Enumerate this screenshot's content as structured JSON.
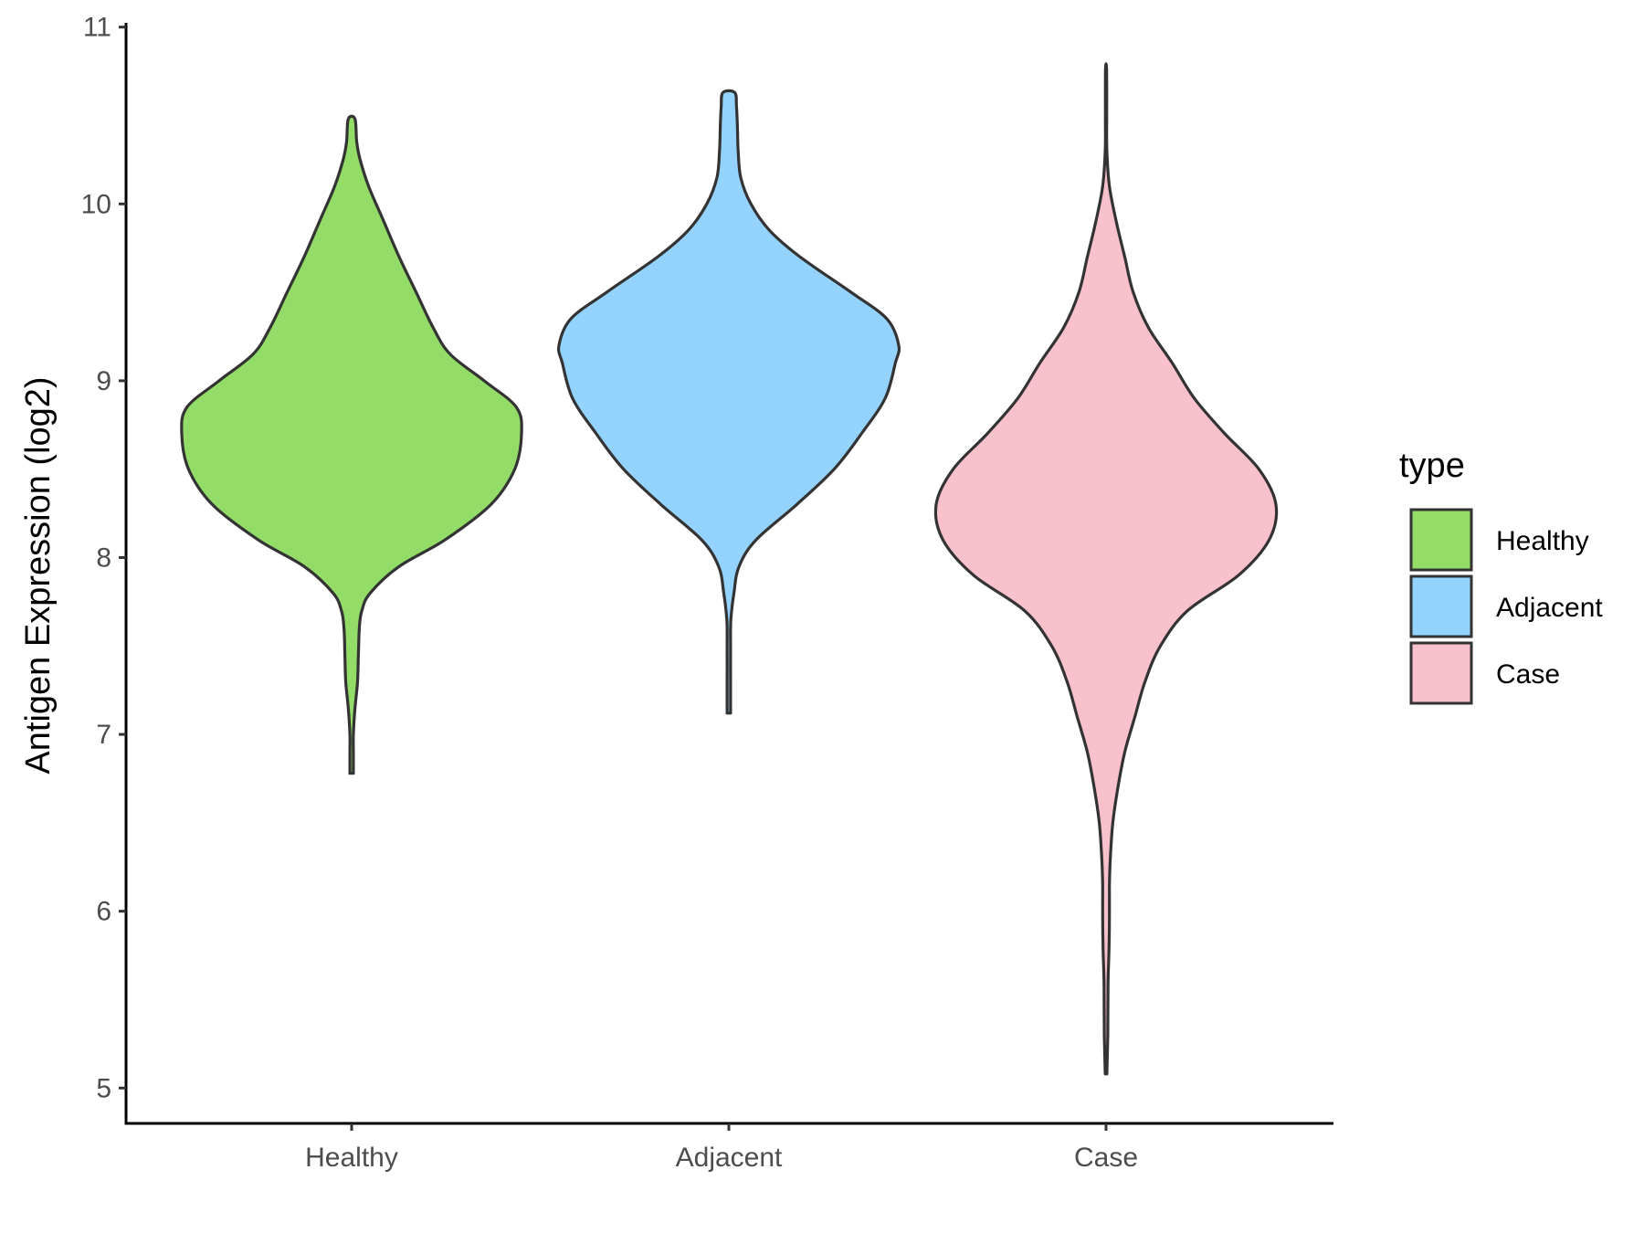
{
  "chart_data": {
    "type": "violin",
    "title": "",
    "xlabel": "",
    "ylabel": "Antigen Expression (log2)",
    "ylim": [
      4.8,
      11.05
    ],
    "yticks": [
      5,
      6,
      7,
      8,
      9,
      10,
      11
    ],
    "categories": [
      "Healthy",
      "Adjacent",
      "Case"
    ],
    "grid": false,
    "legend": {
      "title": "type",
      "position": "right",
      "entries": [
        "Healthy",
        "Adjacent",
        "Case"
      ]
    },
    "colors": {
      "Healthy": "#93dc68",
      "Adjacent": "#93d3fd",
      "Case": "#f8c1cc",
      "outline": "#333333"
    },
    "series": [
      {
        "name": "Healthy",
        "min": 6.78,
        "max": 10.48,
        "profile": [
          [
            6.78,
            0.01
          ],
          [
            6.9,
            0.01
          ],
          [
            7.0,
            0.01
          ],
          [
            7.15,
            0.02
          ],
          [
            7.3,
            0.035
          ],
          [
            7.45,
            0.04
          ],
          [
            7.6,
            0.045
          ],
          [
            7.7,
            0.06
          ],
          [
            7.8,
            0.11
          ],
          [
            7.95,
            0.28
          ],
          [
            8.1,
            0.55
          ],
          [
            8.3,
            0.82
          ],
          [
            8.5,
            0.96
          ],
          [
            8.7,
            1.0
          ],
          [
            8.85,
            0.97
          ],
          [
            9.0,
            0.78
          ],
          [
            9.15,
            0.58
          ],
          [
            9.3,
            0.48
          ],
          [
            9.5,
            0.38
          ],
          [
            9.7,
            0.28
          ],
          [
            9.9,
            0.19
          ],
          [
            10.1,
            0.1
          ],
          [
            10.25,
            0.05
          ],
          [
            10.35,
            0.03
          ],
          [
            10.48,
            0.02
          ]
        ]
      },
      {
        "name": "Adjacent",
        "min": 7.12,
        "max": 10.63,
        "profile": [
          [
            7.12,
            0.01
          ],
          [
            7.3,
            0.01
          ],
          [
            7.5,
            0.01
          ],
          [
            7.65,
            0.012
          ],
          [
            7.8,
            0.03
          ],
          [
            7.95,
            0.06
          ],
          [
            8.1,
            0.16
          ],
          [
            8.3,
            0.4
          ],
          [
            8.5,
            0.62
          ],
          [
            8.7,
            0.78
          ],
          [
            8.9,
            0.92
          ],
          [
            9.1,
            0.98
          ],
          [
            9.2,
            1.0
          ],
          [
            9.35,
            0.93
          ],
          [
            9.5,
            0.72
          ],
          [
            9.7,
            0.42
          ],
          [
            9.85,
            0.24
          ],
          [
            10.0,
            0.13
          ],
          [
            10.15,
            0.07
          ],
          [
            10.3,
            0.055
          ],
          [
            10.45,
            0.05
          ],
          [
            10.55,
            0.045
          ],
          [
            10.63,
            0.035
          ]
        ]
      },
      {
        "name": "Case",
        "min": 5.08,
        "max": 10.76,
        "profile": [
          [
            5.08,
            0.005
          ],
          [
            5.3,
            0.01
          ],
          [
            5.6,
            0.012
          ],
          [
            5.8,
            0.018
          ],
          [
            6.0,
            0.02
          ],
          [
            6.15,
            0.02
          ],
          [
            6.3,
            0.025
          ],
          [
            6.5,
            0.04
          ],
          [
            6.7,
            0.07
          ],
          [
            6.9,
            0.11
          ],
          [
            7.1,
            0.17
          ],
          [
            7.3,
            0.23
          ],
          [
            7.5,
            0.32
          ],
          [
            7.7,
            0.48
          ],
          [
            7.9,
            0.78
          ],
          [
            8.1,
            0.96
          ],
          [
            8.3,
            1.0
          ],
          [
            8.5,
            0.9
          ],
          [
            8.7,
            0.7
          ],
          [
            8.9,
            0.52
          ],
          [
            9.1,
            0.39
          ],
          [
            9.3,
            0.25
          ],
          [
            9.5,
            0.16
          ],
          [
            9.7,
            0.11
          ],
          [
            9.9,
            0.06
          ],
          [
            10.1,
            0.02
          ],
          [
            10.3,
            0.005
          ],
          [
            10.5,
            0.004
          ],
          [
            10.76,
            0.003
          ]
        ]
      }
    ]
  }
}
